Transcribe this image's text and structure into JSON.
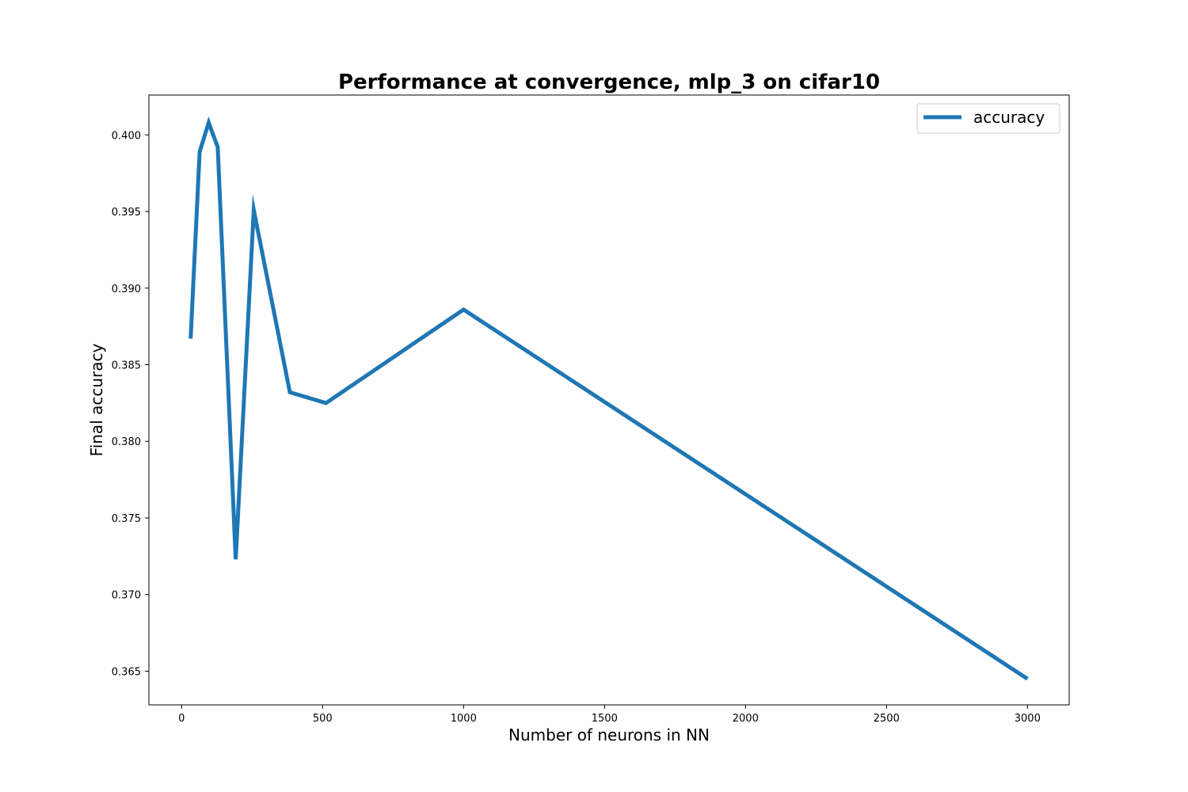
{
  "chart_data": {
    "type": "line",
    "title": "Performance at convergence, mlp_3 on cifar10",
    "xlabel": "Number of neurons in NN",
    "ylabel": "Final accuracy",
    "xlim": [
      -116,
      3148
    ],
    "ylim": [
      0.3628,
      0.4026
    ],
    "xticks": [
      0,
      500,
      1000,
      1500,
      2000,
      2500,
      3000
    ],
    "yticks": [
      0.365,
      0.37,
      0.375,
      0.38,
      0.385,
      0.39,
      0.395,
      0.4
    ],
    "ytick_labels": [
      "0.365",
      "0.370",
      "0.375",
      "0.380",
      "0.385",
      "0.390",
      "0.395",
      "0.400"
    ],
    "grid": false,
    "legend": "top-right",
    "series": [
      {
        "name": "accuracy",
        "color": "#1f77b4",
        "x": [
          32,
          64,
          96,
          128,
          192,
          256,
          384,
          512,
          1000,
          3000
        ],
        "y": [
          0.3867,
          0.3989,
          0.4008,
          0.3992,
          0.3723,
          0.3951,
          0.3832,
          0.3825,
          0.3886,
          0.3645
        ]
      }
    ]
  }
}
